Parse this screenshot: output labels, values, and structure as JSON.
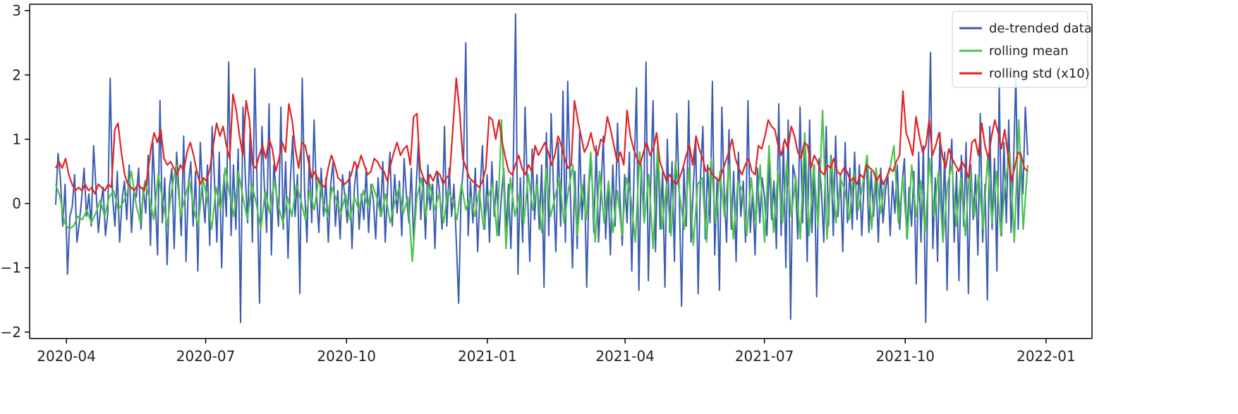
{
  "chart_data": {
    "type": "line",
    "xlim": [
      "2020-03-08",
      "2022-01-31"
    ],
    "ylim": [
      -2.1,
      3.1
    ],
    "x_ticks": [
      "2020-04",
      "2020-07",
      "2020-10",
      "2021-01",
      "2021-04",
      "2021-07",
      "2021-10",
      "2022-01"
    ],
    "y_ticks": [
      "-2",
      "-1",
      "0",
      "1",
      "2",
      "3"
    ],
    "grid": false,
    "legend_position": "top-right",
    "x_start": "2020-03-25",
    "x_end": "2021-12-20",
    "series": [
      {
        "name": "de-trended data",
        "color": "#3a5cb0",
        "values": [
          -0.02,
          0.78,
          0.4,
          -0.35,
          0.3,
          -1.1,
          -0.2,
          -0.05,
          0.45,
          -0.6,
          -0.3,
          0.1,
          0.55,
          -0.2,
          0.15,
          -0.35,
          0.9,
          0.25,
          -0.45,
          -0.05,
          0.25,
          -0.5,
          -0.15,
          1.95,
          0.1,
          -0.35,
          0.5,
          -0.6,
          0.05,
          0.35,
          -0.25,
          0.6,
          -0.45,
          0.2,
          0.1,
          0.55,
          -0.4,
          0.25,
          -0.15,
          0.75,
          -0.65,
          0.95,
          0.1,
          -0.8,
          1.6,
          -0.3,
          0.4,
          -0.95,
          0.25,
          0.55,
          -0.7,
          0.8,
          0.2,
          -0.5,
          1.05,
          -0.9,
          0.3,
          0.65,
          -0.35,
          0.5,
          -1.05,
          0.95,
          0.15,
          -0.3,
          0.6,
          -0.65,
          1.2,
          0.35,
          -0.6,
          0.8,
          -1.0,
          0.45,
          -0.2,
          2.2,
          -0.5,
          0.6,
          -0.4,
          0.85,
          -1.85,
          1.5,
          0.4,
          -0.3,
          1.1,
          -0.6,
          2.1,
          0.2,
          -1.55,
          1.2,
          0.3,
          -0.45,
          1.55,
          -0.8,
          0.6,
          0.2,
          -0.35,
          1.5,
          -0.4,
          0.65,
          -0.85,
          0.35,
          1.05,
          -0.2,
          0.45,
          -1.4,
          1.95,
          0.2,
          -0.6,
          0.75,
          -0.3,
          1.3,
          0.15,
          -0.45,
          0.55,
          -0.2,
          0.4,
          -0.6,
          0.3,
          0.65,
          -0.35,
          0.2,
          -0.55,
          0.45,
          0.1,
          -0.3,
          0.5,
          -0.7,
          0.25,
          0.6,
          -0.4,
          0.15,
          -0.25,
          0.55,
          -0.45,
          0.3,
          0.05,
          -0.55,
          0.4,
          -0.2,
          0.65,
          -0.6,
          0.25,
          0.8,
          -0.35,
          0.45,
          -0.15,
          0.35,
          -0.5,
          0.7,
          0.1,
          -0.3,
          0.55,
          -0.6,
          0.2,
          0.95,
          -0.25,
          0.4,
          -0.55,
          0.6,
          -0.1,
          0.3,
          -0.7,
          0.5,
          0.15,
          -0.4,
          1.2,
          -0.35,
          0.55,
          -0.2,
          0.3,
          -0.6,
          -1.55,
          0.1,
          0.6,
          2.5,
          -0.5,
          0.35,
          -0.3,
          0.55,
          -0.75,
          0.2,
          0.9,
          -0.4,
          0.45,
          -0.6,
          0.65,
          -0.2,
          0.35,
          -0.5,
          0.1,
          0.55,
          -0.45,
          0.3,
          -0.7,
          0.5,
          2.95,
          -1.1,
          0.4,
          -0.6,
          1.5,
          0.2,
          -0.9,
          0.85,
          -0.25,
          0.45,
          -0.4,
          0.6,
          -1.3,
          1.1,
          -0.5,
          1.4,
          0.2,
          -0.75,
          0.95,
          -0.35,
          1.75,
          -0.6,
          1.9,
          0.3,
          -1.0,
          0.5,
          -0.7,
          1.1,
          -0.25,
          0.45,
          -1.3,
          0.3,
          0.65,
          -0.45,
          0.9,
          -0.6,
          0.2,
          1.05,
          -0.55,
          0.3,
          -0.8,
          0.6,
          -0.35,
          1.25,
          0.1,
          -0.65,
          0.45,
          -0.3,
          0.8,
          -1.05,
          0.5,
          1.8,
          -1.35,
          0.6,
          -0.2,
          2.2,
          -1.2,
          0.35,
          1.6,
          -0.75,
          0.9,
          -0.4,
          0.5,
          -1.3,
          1.0,
          -0.45,
          0.65,
          -0.9,
          1.4,
          0.2,
          -1.6,
          0.55,
          -0.35,
          1.6,
          -0.6,
          0.3,
          0.95,
          -1.4,
          0.45,
          1.2,
          -0.55,
          0.6,
          -0.3,
          1.9,
          -0.8,
          0.4,
          -1.35,
          1.5,
          0.15,
          -0.6,
          1.15,
          -0.4,
          0.5,
          -0.9,
          0.8,
          -0.2,
          0.35,
          -0.6,
          1.6,
          -0.45,
          0.2,
          -0.8,
          0.55,
          -0.3,
          0.4,
          0.1,
          -0.5,
          0.65,
          -0.25,
          0.35,
          -0.7,
          1.55,
          -0.5,
          0.95,
          -1.0,
          1.3,
          -1.8,
          0.6,
          0.4,
          -0.55,
          1.5,
          -0.3,
          0.8,
          -0.9,
          1.3,
          -0.45,
          0.6,
          -1.45,
          0.7,
          0.2,
          -0.6,
          1.2,
          -0.35,
          0.75,
          -0.5,
          1.05,
          -0.2,
          0.45,
          -0.75,
          0.95,
          -0.3,
          0.55,
          -0.4,
          0.8,
          -0.25,
          0.6,
          -0.5,
          0.35,
          0.7,
          -0.45,
          0.5,
          -0.2,
          0.4,
          -0.6,
          0.55,
          -0.3,
          0.2,
          0.45,
          -0.5,
          0.35,
          -0.15,
          0.6,
          -0.4,
          0.3,
          0.7,
          -0.55,
          0.25,
          -0.35,
          0.5,
          -1.25,
          0.8,
          -0.6,
          0.9,
          -1.85,
          0.55,
          2.35,
          -0.7,
          0.4,
          -0.9,
          1.1,
          -0.5,
          0.8,
          -1.35,
          0.45,
          1.0,
          -0.6,
          0.5,
          -1.2,
          0.75,
          -0.35,
          0.95,
          -1.4,
          0.6,
          -0.25,
          0.45,
          -0.8,
          1.4,
          -0.6,
          0.3,
          -1.5,
          1.2,
          -0.4,
          0.7,
          -1.05,
          1.85,
          -0.5,
          0.95,
          -0.3,
          1.3,
          -0.45,
          0.6,
          2.0,
          -0.4,
          0.8,
          0.15,
          1.5,
          0.75
        ]
      },
      {
        "name": "rolling mean",
        "color": "#4cc24c",
        "values": [
          0.3,
          0.1,
          -0.3,
          -0.4,
          -0.35,
          -0.2,
          -0.25,
          -0.1,
          -0.3,
          -0.15,
          0.05,
          -0.2,
          0.1,
          0.2,
          -0.1,
          0.0,
          0.15,
          0.5,
          0.0,
          -0.3,
          0.35,
          0.1,
          -0.25,
          0.45,
          0.05,
          -0.35,
          0.2,
          0.6,
          -0.2,
          0.1,
          0.35,
          -0.1,
          -0.35,
          0.4,
          0.05,
          -0.4,
          0.25,
          -0.1,
          0.55,
          0.15,
          -0.2,
          0.5,
          0.1,
          -0.25,
          0.3,
          0.0,
          -0.4,
          0.2,
          -0.15,
          0.35,
          -0.05,
          -0.3,
          0.1,
          -0.2,
          0.3,
          0.05,
          -0.25,
          0.2,
          -0.1,
          0.4,
          0.0,
          -0.2,
          0.25,
          0.05,
          -0.15,
          0.15,
          -0.25,
          0.1,
          -0.1,
          0.2,
          -0.05,
          0.3,
          0.1,
          -0.2,
          0.15,
          -0.3,
          0.0,
          0.25,
          -0.15,
          0.1,
          -0.9,
          0.1,
          0.4,
          -0.2,
          0.3,
          -0.1,
          0.15,
          -0.3,
          0.2,
          0.05,
          -0.25,
          0.3,
          -0.1,
          0.1,
          -0.2,
          0.2,
          -0.4,
          0.1,
          0.3,
          -0.5,
          1.3,
          -0.7,
          0.4,
          -0.2,
          0.15,
          -0.3,
          0.45,
          -0.1,
          0.3,
          -0.45,
          0.55,
          -0.2,
          0.1,
          0.4,
          -0.3,
          0.2,
          0.6,
          -0.5,
          0.3,
          -0.25,
          0.8,
          -0.6,
          0.5,
          -0.3,
          0.35,
          -0.45,
          0.2,
          -0.5,
          0.4,
          0.1,
          -0.6,
          0.8,
          -0.3,
          0.45,
          -0.7,
          0.9,
          -0.4,
          0.3,
          -0.5,
          0.65,
          0.1,
          -0.4,
          0.55,
          -0.65,
          0.3,
          0.4,
          -0.6,
          0.7,
          -0.3,
          0.5,
          -0.2,
          0.6,
          -0.55,
          0.35,
          0.2,
          -0.5,
          0.4,
          -0.3,
          0.6,
          -0.6,
          0.9,
          -0.45,
          0.5,
          -0.3,
          0.65,
          -0.2,
          0.4,
          -0.55,
          1.1,
          -0.5,
          0.6,
          -0.35,
          1.45,
          -0.55,
          0.7,
          -0.3,
          0.4,
          0.2,
          -0.25,
          0.5,
          -0.1,
          0.3,
          0.75,
          -0.4,
          0.55,
          -0.15,
          0.35,
          0.5,
          0.9,
          -0.3,
          0.4,
          -0.55,
          0.6,
          -0.2,
          0.35,
          -0.45,
          0.7,
          -0.2,
          0.5,
          -0.6,
          0.3,
          0.6,
          -0.35,
          0.4,
          -0.5,
          0.55,
          -0.2,
          0.45,
          -0.4,
          0.7,
          -0.3,
          0.5,
          -0.5,
          0.35,
          0.8,
          -0.6,
          1.3,
          -0.4,
          0.6
        ]
      },
      {
        "name": "rolling std (x10)",
        "color": "#e02424",
        "values": [
          0.55,
          0.65,
          0.55,
          0.7,
          0.45,
          0.3,
          0.2,
          0.25,
          0.2,
          0.3,
          0.2,
          0.25,
          0.15,
          0.3,
          0.25,
          0.2,
          0.3,
          0.25,
          1.15,
          1.25,
          0.8,
          0.45,
          0.3,
          0.25,
          0.2,
          0.3,
          0.25,
          0.2,
          0.45,
          0.85,
          1.1,
          0.95,
          1.15,
          0.7,
          0.6,
          0.65,
          0.55,
          0.45,
          0.6,
          0.5,
          0.8,
          0.95,
          0.75,
          0.5,
          0.3,
          0.4,
          0.35,
          0.55,
          0.9,
          1.25,
          1.05,
          1.2,
          0.9,
          0.7,
          1.7,
          1.45,
          1.05,
          0.75,
          1.6,
          1.3,
          0.6,
          0.55,
          0.75,
          0.9,
          0.7,
          1.0,
          0.85,
          0.5,
          0.7,
          0.95,
          0.8,
          1.55,
          1.3,
          0.85,
          0.55,
          0.95,
          0.9,
          0.65,
          0.4,
          0.5,
          0.35,
          0.3,
          0.25,
          0.55,
          0.75,
          0.6,
          0.4,
          0.35,
          0.3,
          0.35,
          0.45,
          0.65,
          0.55,
          0.75,
          0.6,
          0.45,
          0.5,
          0.7,
          0.65,
          0.55,
          0.5,
          0.35,
          0.6,
          0.8,
          0.95,
          0.75,
          0.85,
          0.9,
          0.6,
          1.35,
          1.4,
          0.55,
          0.4,
          0.3,
          0.45,
          0.35,
          0.5,
          0.45,
          0.3,
          0.4,
          0.45,
          1.2,
          1.95,
          1.45,
          0.7,
          0.55,
          0.4,
          0.35,
          0.3,
          0.25,
          0.35,
          0.55,
          1.35,
          1.3,
          1.0,
          1.3,
          0.95,
          0.7,
          0.5,
          0.45,
          0.6,
          0.75,
          0.55,
          0.45,
          0.6,
          0.5,
          0.9,
          0.75,
          0.85,
          0.95,
          0.8,
          0.6,
          0.75,
          1.05,
          0.9,
          0.7,
          0.55,
          0.6,
          1.6,
          1.3,
          1.05,
          0.8,
          0.9,
          1.1,
          0.85,
          0.75,
          1.0,
          0.95,
          1.35,
          1.15,
          0.9,
          0.65,
          0.8,
          0.6,
          1.45,
          1.05,
          0.85,
          0.7,
          0.6,
          0.8,
          0.95,
          0.75,
          0.85,
          1.1,
          0.65,
          0.5,
          0.35,
          0.45,
          0.35,
          0.3,
          0.4,
          0.55,
          0.75,
          0.9,
          0.6,
          1.05,
          0.85,
          0.7,
          0.5,
          0.55,
          0.45,
          0.4,
          0.35,
          0.5,
          0.65,
          0.8,
          1.0,
          0.7,
          0.55,
          0.45,
          0.6,
          0.7,
          0.5,
          0.45,
          0.9,
          0.85,
          1.05,
          1.3,
          1.2,
          1.15,
          0.9,
          0.75,
          1.0,
          0.85,
          1.2,
          1.05,
          0.8,
          0.7,
          0.95,
          0.9,
          0.55,
          0.75,
          0.65,
          0.5,
          0.45,
          0.6,
          0.55,
          0.7,
          0.5,
          0.45,
          0.55,
          0.5,
          0.35,
          0.4,
          0.3,
          0.45,
          0.4,
          0.6,
          0.55,
          0.5,
          0.35,
          0.45,
          0.3,
          0.4,
          0.55,
          0.5,
          0.65,
          0.75,
          1.75,
          1.1,
          0.95,
          0.75,
          1.35,
          1.05,
          0.8,
          0.9,
          1.3,
          0.75,
          0.9,
          1.1,
          0.75,
          0.55,
          0.85,
          0.7,
          0.6,
          0.5,
          0.65,
          0.55,
          0.4,
          0.95,
          1.0,
          0.75,
          1.25,
          0.9,
          0.7,
          1.05,
          1.3,
          1.1,
          0.85,
          1.15,
          0.75,
          0.35,
          0.55,
          0.8,
          0.75,
          0.55,
          0.5
        ]
      }
    ]
  }
}
